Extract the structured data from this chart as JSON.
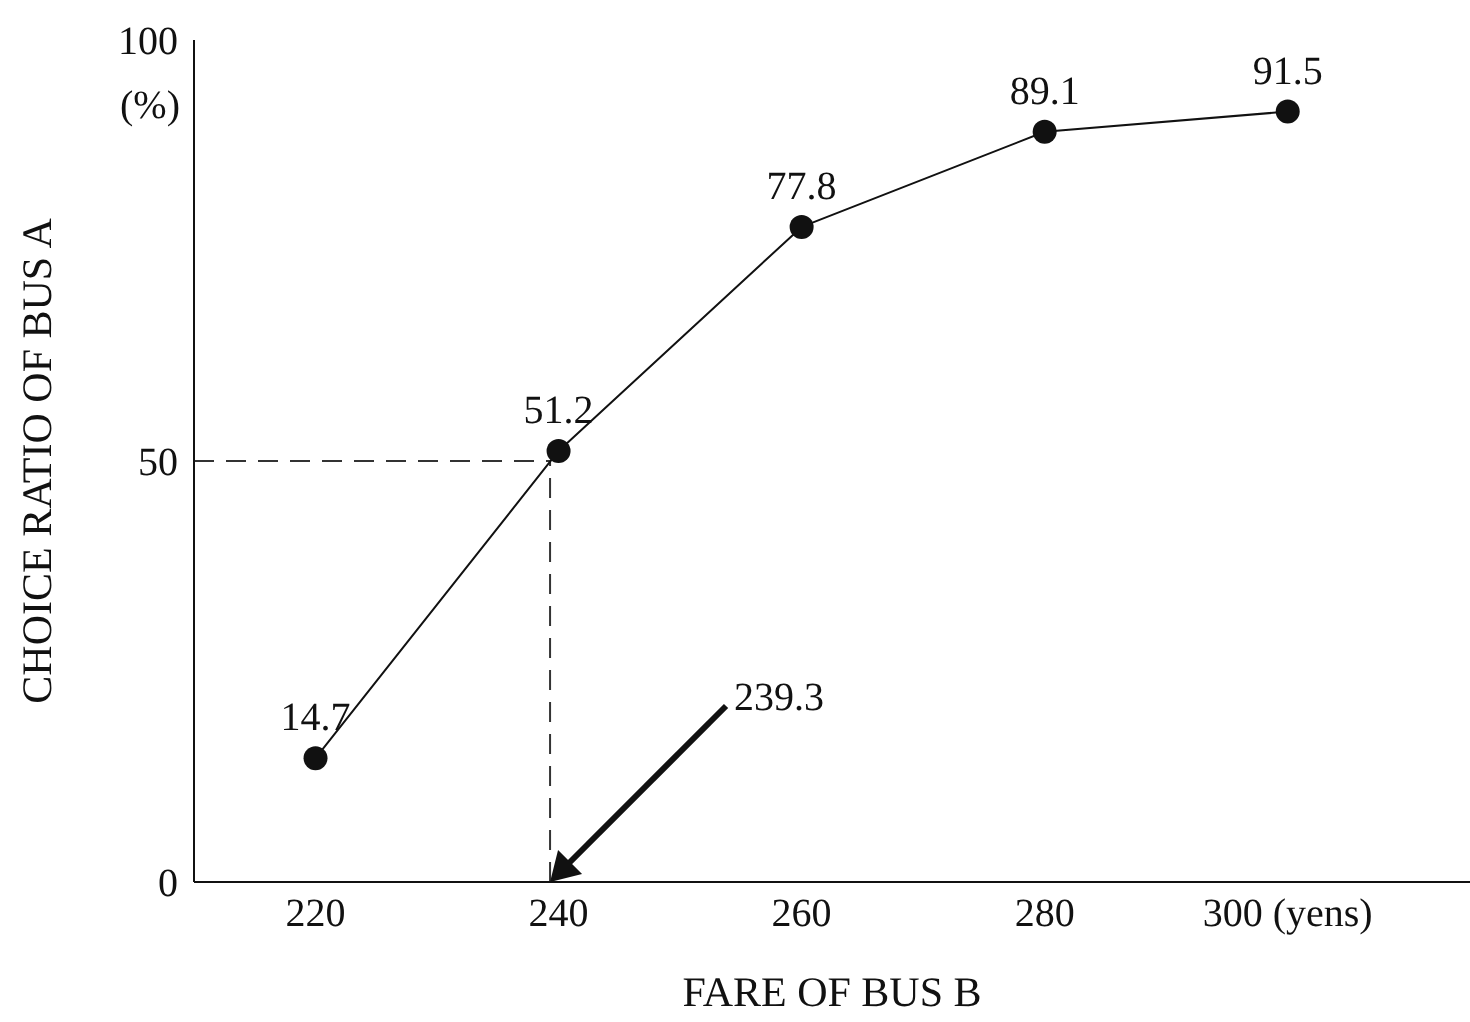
{
  "chart_data": {
    "type": "line",
    "xlabel": "FARE OF BUS B",
    "ylabel": "CHOICE RATIO OF BUS A",
    "x": [
      220,
      240,
      260,
      280,
      300
    ],
    "series": [
      {
        "color": "#111111",
        "values": [
          14.7,
          51.2,
          77.8,
          89.1,
          91.5
        ]
      }
    ],
    "xlim": [
      210,
      315
    ],
    "xticks": [
      220,
      240,
      260,
      280,
      {
        "value": 300,
        "label": "300 (yens)"
      }
    ],
    "ylim": [
      0,
      100
    ],
    "yticks": [
      0,
      50,
      100
    ],
    "ref_lines": [
      {
        "axis": "y",
        "value": 50,
        "line_style": "dashed"
      },
      {
        "axis": "x",
        "value": 239.3,
        "line_style": "dashed"
      }
    ],
    "annotations": [
      "(%)",
      "239.3"
    ],
    "data_labels": true,
    "marker": "circle",
    "line_style": "solid",
    "grid": false,
    "legend": false
  }
}
